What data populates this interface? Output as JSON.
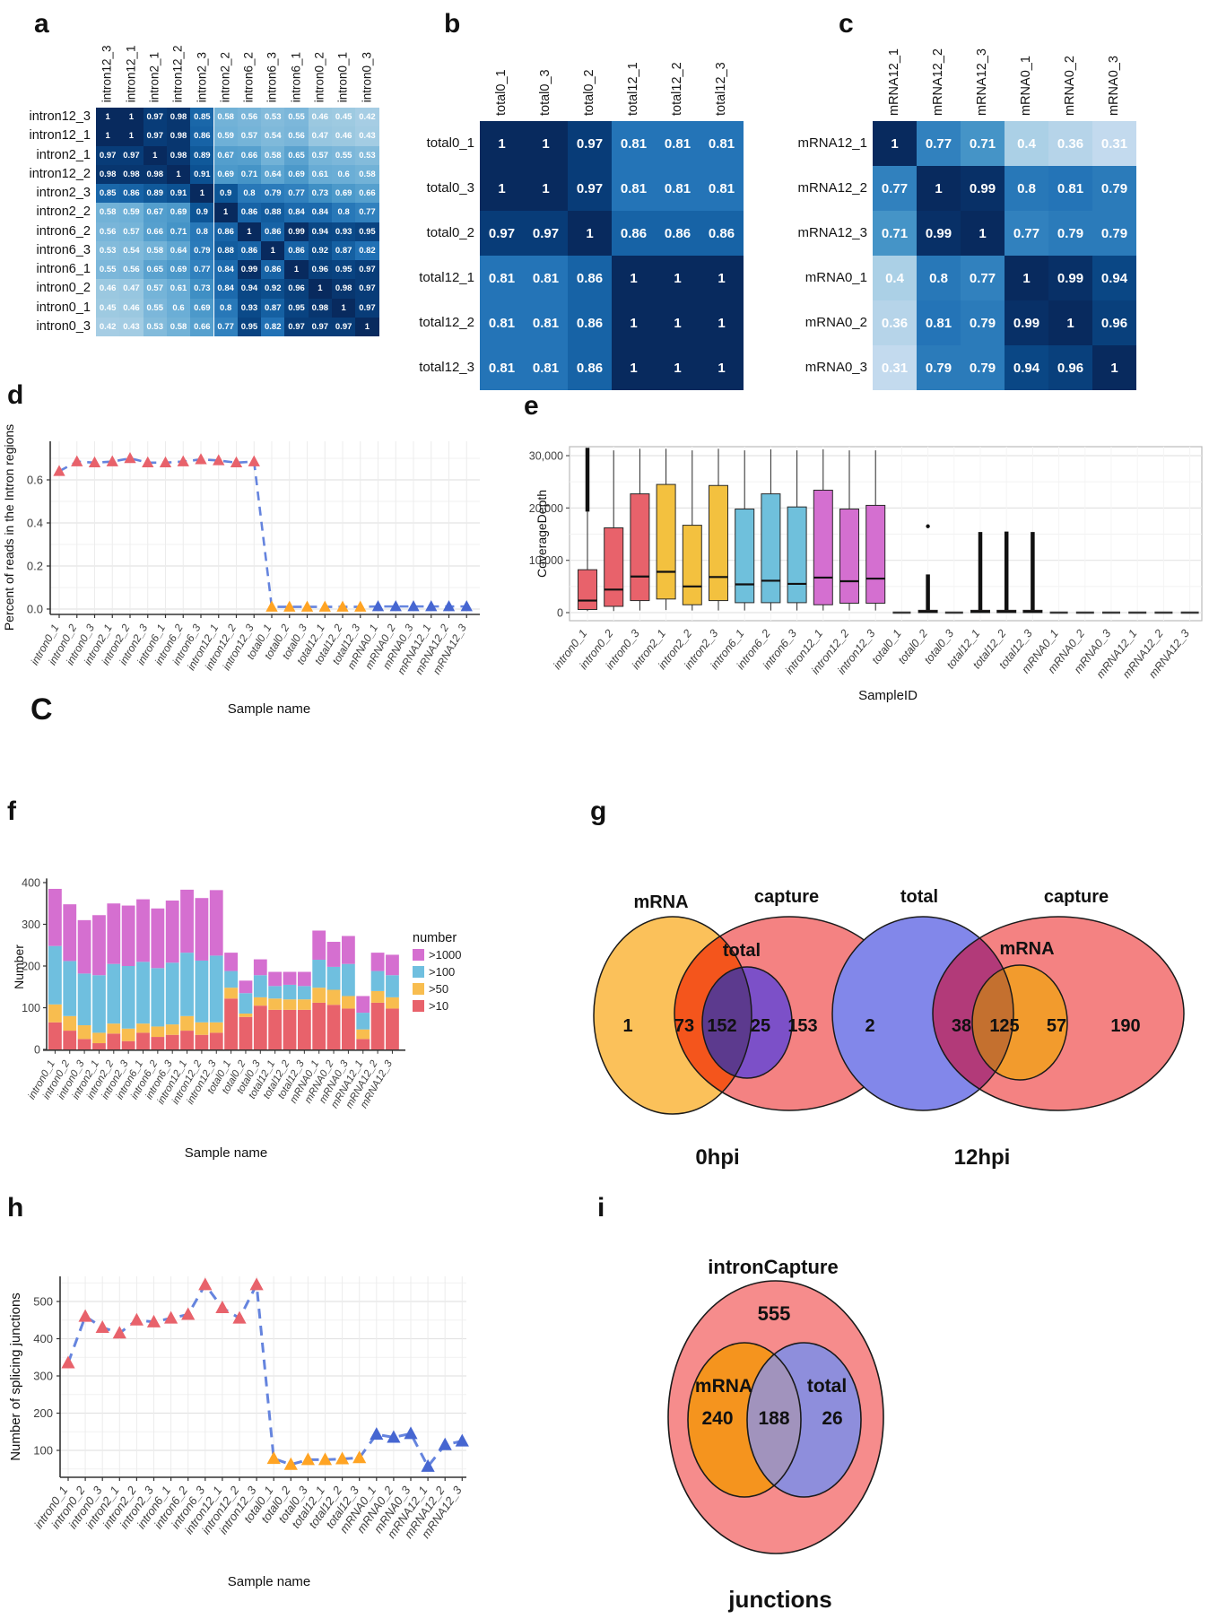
{
  "panel_labels": {
    "a": "a",
    "b": "b",
    "c": "c",
    "d": "d",
    "e": "e",
    "f": "f",
    "g": "g",
    "h": "h",
    "i": "i",
    "stray_c": "C"
  },
  "sample_names": [
    "intron0_1",
    "intron0_2",
    "intron0_3",
    "intron2_1",
    "intron2_2",
    "intron2_3",
    "intron6_1",
    "intron6_2",
    "intron6_3",
    "intron12_1",
    "intron12_2",
    "intron12_3",
    "total0_1",
    "total0_2",
    "total0_3",
    "total12_1",
    "total12_2",
    "total12_3",
    "mRNA0_1",
    "mRNA0_2",
    "mRNA0_3",
    "mRNA12_1",
    "mRNA12_2",
    "mRNA12_3"
  ],
  "colors": {
    "heatmap_scale_low": "#C6DBEF",
    "heatmap_scale_high": "#082A5E",
    "line_dash": "#6584DE",
    "point_intron": "#E8626B",
    "point_total": "#FFA424",
    "point_mRNA": "#4666D1",
    "box_intron0": "#E8626B",
    "box_intron2": "#F3C13F",
    "box_intron6": "#6FC0DC",
    "box_intron12": "#D46FD0",
    "box_total_small": "#7F3B33"
  },
  "chart_data": [
    {
      "id": "a",
      "type": "heatmap",
      "rows": [
        "intron12_3",
        "intron12_1",
        "intron2_1",
        "intron12_2",
        "intron2_3",
        "intron2_2",
        "intron6_2",
        "intron6_3",
        "intron6_1",
        "intron0_2",
        "intron0_1",
        "intron0_3"
      ],
      "cols": [
        "intron12_3",
        "intron12_1",
        "intron2_1",
        "intron12_2",
        "intron2_3",
        "intron2_2",
        "intron6_2",
        "intron6_3",
        "intron6_1",
        "intron0_2",
        "intron0_1",
        "intron0_3"
      ],
      "values": [
        [
          1,
          1,
          0.97,
          0.98,
          0.85,
          0.58,
          0.56,
          0.53,
          0.55,
          0.46,
          0.45,
          0.42
        ],
        [
          1,
          1,
          0.97,
          0.98,
          0.86,
          0.59,
          0.57,
          0.54,
          0.56,
          0.47,
          0.46,
          0.43
        ],
        [
          0.97,
          0.97,
          1,
          0.98,
          0.89,
          0.67,
          0.66,
          0.58,
          0.65,
          0.57,
          0.55,
          0.53
        ],
        [
          0.98,
          0.98,
          0.98,
          1,
          0.91,
          0.69,
          0.71,
          0.64,
          0.69,
          0.61,
          0.6,
          0.58
        ],
        [
          0.85,
          0.86,
          0.89,
          0.91,
          1,
          0.9,
          0.8,
          0.79,
          0.77,
          0.73,
          0.69,
          0.66
        ],
        [
          0.58,
          0.59,
          0.67,
          0.69,
          0.9,
          1,
          0.86,
          0.88,
          0.84,
          0.84,
          0.8,
          0.77
        ],
        [
          0.56,
          0.57,
          0.66,
          0.71,
          0.8,
          0.86,
          1,
          0.86,
          0.99,
          0.94,
          0.93,
          0.95
        ],
        [
          0.53,
          0.54,
          0.58,
          0.64,
          0.79,
          0.88,
          0.86,
          1,
          0.86,
          0.92,
          0.87,
          0.82
        ],
        [
          0.55,
          0.56,
          0.65,
          0.69,
          0.77,
          0.84,
          0.99,
          0.86,
          1,
          0.96,
          0.95,
          0.97
        ],
        [
          0.46,
          0.47,
          0.57,
          0.61,
          0.73,
          0.84,
          0.94,
          0.92,
          0.96,
          1,
          0.98,
          0.97
        ],
        [
          0.45,
          0.46,
          0.55,
          0.6,
          0.69,
          0.8,
          0.93,
          0.87,
          0.95,
          0.98,
          1,
          0.97
        ],
        [
          0.42,
          0.43,
          0.53,
          0.58,
          0.66,
          0.77,
          0.95,
          0.82,
          0.97,
          0.97,
          0.97,
          1
        ]
      ]
    },
    {
      "id": "b",
      "type": "heatmap",
      "rows": [
        "total0_1",
        "total0_3",
        "total0_2",
        "total12_1",
        "total12_2",
        "total12_3"
      ],
      "cols": [
        "total0_1",
        "total0_3",
        "total0_2",
        "total12_1",
        "total12_2",
        "total12_3"
      ],
      "values": [
        [
          1,
          1,
          0.97,
          0.81,
          0.81,
          0.81
        ],
        [
          1,
          1,
          0.97,
          0.81,
          0.81,
          0.81
        ],
        [
          0.97,
          0.97,
          1,
          0.86,
          0.86,
          0.86
        ],
        [
          0.81,
          0.81,
          0.86,
          1,
          1,
          1
        ],
        [
          0.81,
          0.81,
          0.86,
          1,
          1,
          1
        ],
        [
          0.81,
          0.81,
          0.86,
          1,
          1,
          1
        ]
      ]
    },
    {
      "id": "c",
      "type": "heatmap",
      "rows": [
        "mRNA12_1",
        "mRNA12_2",
        "mRNA12_3",
        "mRNA0_1",
        "mRNA0_2",
        "mRNA0_3"
      ],
      "cols": [
        "mRNA12_1",
        "mRNA12_2",
        "mRNA12_3",
        "mRNA0_1",
        "mRNA0_2",
        "mRNA0_3"
      ],
      "values": [
        [
          1,
          0.77,
          0.71,
          0.4,
          0.36,
          0.31
        ],
        [
          0.77,
          1,
          0.99,
          0.8,
          0.81,
          0.79
        ],
        [
          0.71,
          0.99,
          1,
          0.77,
          0.79,
          0.79
        ],
        [
          0.4,
          0.8,
          0.77,
          1,
          0.99,
          0.94
        ],
        [
          0.36,
          0.81,
          0.79,
          0.99,
          1,
          0.96
        ],
        [
          0.31,
          0.79,
          0.79,
          0.94,
          0.96,
          1
        ]
      ]
    },
    {
      "id": "d",
      "type": "line",
      "ylabel": "Percent of reads in the Intron regions",
      "xlabel": "Sample name",
      "yticks": [
        0.0,
        0.2,
        0.4,
        0.6
      ],
      "ylim": [
        0,
        0.74
      ],
      "categories": [
        "intron0_1",
        "intron0_2",
        "intron0_3",
        "intron2_1",
        "intron2_2",
        "intron2_3",
        "intron6_1",
        "intron6_2",
        "intron6_3",
        "intron12_1",
        "intron12_2",
        "intron12_3",
        "total0_1",
        "total0_2",
        "total0_3",
        "total12_1",
        "total12_2",
        "total12_3",
        "mRNA0_1",
        "mRNA0_2",
        "mRNA0_3",
        "mRNA12_1",
        "mRNA12_2",
        "mRNA12_3"
      ],
      "values": [
        0.64,
        0.685,
        0.68,
        0.685,
        0.7,
        0.68,
        0.68,
        0.685,
        0.695,
        0.69,
        0.68,
        0.685,
        0.01,
        0.01,
        0.01,
        0.01,
        0.01,
        0.01,
        0.012,
        0.012,
        0.012,
        0.012,
        0.012,
        0.012
      ],
      "groups": [
        "intron",
        "intron",
        "intron",
        "intron",
        "intron",
        "intron",
        "intron",
        "intron",
        "intron",
        "intron",
        "intron",
        "intron",
        "total",
        "total",
        "total",
        "total",
        "total",
        "total",
        "mRNA",
        "mRNA",
        "mRNA",
        "mRNA",
        "mRNA",
        "mRNA"
      ]
    },
    {
      "id": "e",
      "type": "box",
      "ylabel": "CoverageDepth",
      "xlabel": "SampleID",
      "yticks": [
        0,
        10000,
        20000,
        30000
      ],
      "ylim": [
        -1500,
        31800
      ],
      "boxes": [
        {
          "name": "intron0_1",
          "group": "intron0",
          "min": 300,
          "q1": 600,
          "med": 2300,
          "q3": 8200,
          "max": 19300,
          "stack": [
            19300,
            31500
          ]
        },
        {
          "name": "intron0_2",
          "group": "intron0",
          "min": 300,
          "q1": 1200,
          "med": 4400,
          "q3": 16200,
          "max": 31000
        },
        {
          "name": "intron0_3",
          "group": "intron0",
          "min": 400,
          "q1": 2300,
          "med": 6900,
          "q3": 22700,
          "max": 31300
        },
        {
          "name": "intron2_1",
          "group": "intron2",
          "min": 500,
          "q1": 2600,
          "med": 7800,
          "q3": 24500,
          "max": 31300
        },
        {
          "name": "intron2_2",
          "group": "intron2",
          "min": 400,
          "q1": 1500,
          "med": 5000,
          "q3": 16700,
          "max": 31000
        },
        {
          "name": "intron2_3",
          "group": "intron2",
          "min": 400,
          "q1": 2300,
          "med": 6800,
          "q3": 24300,
          "max": 31300
        },
        {
          "name": "intron6_1",
          "group": "intron6",
          "min": 400,
          "q1": 1900,
          "med": 5400,
          "q3": 19800,
          "max": 31000
        },
        {
          "name": "intron6_2",
          "group": "intron6",
          "min": 400,
          "q1": 1900,
          "med": 6100,
          "q3": 22700,
          "max": 31200
        },
        {
          "name": "intron6_3",
          "group": "intron6",
          "min": 400,
          "q1": 1900,
          "med": 5500,
          "q3": 20200,
          "max": 31000
        },
        {
          "name": "intron12_1",
          "group": "intron12",
          "min": 400,
          "q1": 1500,
          "med": 6700,
          "q3": 23400,
          "max": 31200
        },
        {
          "name": "intron12_2",
          "group": "intron12",
          "min": 400,
          "q1": 1800,
          "med": 6000,
          "q3": 19800,
          "max": 31000
        },
        {
          "name": "intron12_3",
          "group": "intron12",
          "min": 400,
          "q1": 1800,
          "med": 6500,
          "q3": 20500,
          "max": 31000
        },
        {
          "name": "total0_1",
          "group": "flat"
        },
        {
          "name": "total0_2",
          "group": "total",
          "min": 0,
          "q1": 0,
          "med": 200,
          "q3": 450,
          "max": 450,
          "stack": [
            450,
            7300
          ],
          "dot": 16500
        },
        {
          "name": "total0_3",
          "group": "flat"
        },
        {
          "name": "total12_1",
          "group": "total",
          "min": 0,
          "q1": 0,
          "med": 200,
          "q3": 450,
          "max": 450,
          "stack": [
            450,
            15400
          ]
        },
        {
          "name": "total12_2",
          "group": "total",
          "min": 0,
          "q1": 0,
          "med": 200,
          "q3": 450,
          "max": 450,
          "stack": [
            450,
            15500
          ]
        },
        {
          "name": "total12_3",
          "group": "total",
          "min": 0,
          "q1": 0,
          "med": 200,
          "q3": 450,
          "max": 450,
          "stack": [
            450,
            15400
          ]
        },
        {
          "name": "mRNA0_1",
          "group": "flat"
        },
        {
          "name": "mRNA0_2",
          "group": "flat"
        },
        {
          "name": "mRNA0_3",
          "group": "flat"
        },
        {
          "name": "mRNA12_1",
          "group": "flat"
        },
        {
          "name": "mRNA12_2",
          "group": "flat"
        },
        {
          "name": "mRNA12_3",
          "group": "flat"
        }
      ]
    },
    {
      "id": "f",
      "type": "stacked_bar",
      "ylabel": "Number",
      "xlabel": "Sample name",
      "yticks": [
        0,
        100,
        200,
        300,
        400
      ],
      "legend_title": "number",
      "legend_order": [
        ">1000",
        ">100",
        ">50",
        ">10"
      ],
      "categories": [
        "intron0_1",
        "intron0_2",
        "intron0_3",
        "intron2_1",
        "intron2_2",
        "intron2_3",
        "intron6_1",
        "intron6_2",
        "intron6_3",
        "intron12_1",
        "intron12_2",
        "intron12_3",
        "total0_1",
        "total0_2",
        "total0_3",
        "total12_1",
        "total12_2",
        "total12_3",
        "mRNA0_1",
        "mRNA0_2",
        "mRNA0_3",
        "mRNA12_1",
        "mRNA12_2",
        "mRNA12_3"
      ],
      "series": [
        {
          "name": ">10",
          "color": "#E8626B",
          "values": [
            65,
            45,
            25,
            15,
            38,
            20,
            40,
            30,
            35,
            45,
            35,
            40,
            122,
            78,
            105,
            95,
            95,
            95,
            112,
            107,
            98,
            25,
            112,
            98
          ]
        },
        {
          "name": ">50",
          "color": "#F8BD4F",
          "values": [
            43,
            35,
            33,
            25,
            24,
            30,
            22,
            25,
            25,
            35,
            30,
            25,
            26,
            8,
            20,
            27,
            25,
            25,
            36,
            36,
            30,
            23,
            28,
            27
          ]
        },
        {
          "name": ">100",
          "color": "#6FBFDF",
          "values": [
            140,
            132,
            124,
            138,
            143,
            150,
            148,
            140,
            148,
            152,
            148,
            160,
            40,
            49,
            53,
            30,
            35,
            32,
            67,
            55,
            77,
            40,
            48,
            53
          ]
        },
        {
          "name": ">1000",
          "color": "#D56FD0",
          "values": [
            137,
            136,
            128,
            144,
            145,
            145,
            150,
            143,
            149,
            151,
            150,
            157,
            44,
            30,
            38,
            34,
            31,
            34,
            70,
            60,
            67,
            40,
            44,
            49
          ]
        }
      ]
    },
    {
      "id": "g",
      "type": "venn",
      "diagrams": [
        {
          "subtitle": "0hpi",
          "sets": [
            {
              "label": "mRNA",
              "fill": "#FBC15A"
            },
            {
              "label": "capture",
              "fill": "#F48282"
            },
            {
              "label": "total",
              "fill": "#7C50C8"
            }
          ],
          "overlap_fills": {
            "mRNA_capture": "#F4551C",
            "total_mRNA": "#5C3A8E"
          },
          "counts": [
            1,
            73,
            152,
            25,
            153
          ]
        },
        {
          "subtitle": "12hpi",
          "sets": [
            {
              "label": "total",
              "fill": "#8287EA"
            },
            {
              "label": "capture",
              "fill": "#F48282"
            },
            {
              "label": "mRNA",
              "fill": "#F29B2D"
            }
          ],
          "overlap_fills": {
            "total_capture": "#B23A79",
            "mRNA_total": "#C4702F"
          },
          "counts": [
            2,
            38,
            125,
            57,
            190
          ]
        }
      ]
    },
    {
      "id": "h",
      "type": "line",
      "ylabel": "Number of splicing junctions",
      "xlabel": "Sample name",
      "yticks": [
        100,
        200,
        300,
        400,
        500
      ],
      "ylim": [
        30,
        580
      ],
      "categories": [
        "intron0_1",
        "intron0_2",
        "intron0_3",
        "intron2_1",
        "intron2_2",
        "intron2_3",
        "intron6_1",
        "intron6_2",
        "intron6_3",
        "intron12_1",
        "intron12_2",
        "intron12_3",
        "total0_1",
        "total0_2",
        "total0_3",
        "total12_1",
        "total12_2",
        "total12_3",
        "mRNA0_1",
        "mRNA0_2",
        "mRNA0_3",
        "mRNA12_1",
        "mRNA12_2",
        "mRNA12_3"
      ],
      "values": [
        335,
        460,
        430,
        415,
        450,
        445,
        455,
        465,
        545,
        483,
        455,
        545,
        78,
        62,
        75,
        75,
        77,
        80,
        143,
        135,
        145,
        57,
        115,
        125
      ],
      "groups": [
        "intron",
        "intron",
        "intron",
        "intron",
        "intron",
        "intron",
        "intron",
        "intron",
        "intron",
        "intron",
        "intron",
        "intron",
        "total",
        "total",
        "total",
        "total",
        "total",
        "total",
        "mRNA",
        "mRNA",
        "mRNA",
        "mRNA",
        "mRNA",
        "mRNA"
      ]
    },
    {
      "id": "i",
      "type": "venn",
      "diagrams": [
        {
          "title": "intronCapture",
          "subtitle": "junctions",
          "outer": {
            "label": "intronCapture",
            "fill": "#F68C8C"
          },
          "sets": [
            {
              "label": "mRNA",
              "fill": "#F5941E"
            },
            {
              "label": "total",
              "fill": "#8E8EDC"
            }
          ],
          "overlap_fills": {
            "mRNA_total": "#A193BD"
          },
          "counts": {
            "outer_only": 555,
            "left_only": 240,
            "intersection": 188,
            "right_only": 26
          }
        }
      ]
    }
  ]
}
